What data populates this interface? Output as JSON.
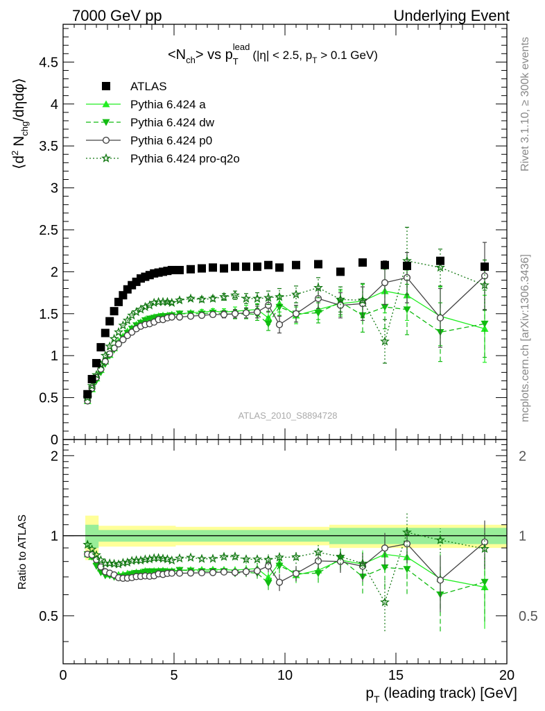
{
  "header": {
    "energy": "7000 GeV pp",
    "analysis_type": "Underlying Event"
  },
  "side": {
    "rivet": "Rivet 3.1.10, ≥ 300k events",
    "mcplots": "mcplots.cern.ch [arXiv:1306.3436]"
  },
  "watermark": "ATLAS_2010_S8894728",
  "title": {
    "main": "<N",
    "ch_sub": "ch",
    "vs": "> vs p",
    "lead_sup": "lead",
    "t_sub": "T",
    "cuts_1": "(|η| < 2.5, p",
    "cuts_t_sub": "T",
    "cuts_2": " > 0.1 GeV)"
  },
  "ylabel": {
    "part1": "⟨d",
    "sup2": "2",
    "part2": " N",
    "sub": "chg",
    "part3": "/dηdφ⟩"
  },
  "ratio_ylabel": "Ratio to ATLAS",
  "xlabel": {
    "p": "p",
    "sub": "T",
    "rest": " (leading track) [GeV]"
  },
  "chart_data": {
    "type": "scatter",
    "xlim": [
      0,
      20
    ],
    "ylim": [
      0,
      4.95
    ],
    "ratio_ylim": [
      0.33,
      2.3
    ],
    "x_ticks": [
      "0",
      "5",
      "10",
      "15",
      "20"
    ],
    "y_ticks": [
      "0.5",
      "1",
      "1.5",
      "2",
      "2.5",
      "3",
      "3.5",
      "4",
      "4.5"
    ],
    "y_ticks_clipped": "0",
    "ratio_ticks_left": [
      "0.5",
      "1",
      "2"
    ],
    "ratio_ticks_right": [
      "0.5",
      "1",
      "2"
    ],
    "x": [
      1.1,
      1.3,
      1.5,
      1.7,
      1.9,
      2.1,
      2.3,
      2.5,
      2.7,
      2.9,
      3.1,
      3.3,
      3.5,
      3.7,
      3.9,
      4.1,
      4.3,
      4.5,
      4.7,
      4.9,
      5.25,
      5.75,
      6.25,
      6.75,
      7.25,
      7.75,
      8.25,
      8.75,
      9.25,
      9.75,
      10.5,
      11.5,
      12.5,
      13.5,
      14.5,
      15.5,
      17.0,
      19.0
    ],
    "series": [
      {
        "name": "ATLAS",
        "color": "#000000",
        "marker": "square",
        "values": [
          0.54,
          0.72,
          0.91,
          1.1,
          1.27,
          1.41,
          1.53,
          1.64,
          1.72,
          1.79,
          1.84,
          1.88,
          1.92,
          1.94,
          1.96,
          1.98,
          1.99,
          2.0,
          2.01,
          2.02,
          2.02,
          2.03,
          2.04,
          2.05,
          2.04,
          2.06,
          2.06,
          2.06,
          2.08,
          2.05,
          2.08,
          2.09,
          2.0,
          2.11,
          2.08,
          2.07,
          2.13,
          2.06
        ],
        "errors": [
          0.01,
          0.01,
          0.01,
          0.01,
          0.01,
          0.01,
          0.01,
          0.01,
          0.01,
          0.01,
          0.01,
          0.01,
          0.01,
          0.01,
          0.01,
          0.01,
          0.01,
          0.01,
          0.01,
          0.01,
          0.01,
          0.01,
          0.01,
          0.01,
          0.01,
          0.01,
          0.01,
          0.01,
          0.01,
          0.02,
          0.02,
          0.02,
          0.03,
          0.03,
          0.04,
          0.05,
          0.06,
          0.1
        ]
      },
      {
        "name": "Pythia 6.424 a",
        "color": "#22ee22",
        "marker": "triangle-up",
        "line": "solid",
        "values": [
          0.46,
          0.6,
          0.73,
          0.83,
          0.93,
          1.01,
          1.09,
          1.17,
          1.23,
          1.29,
          1.33,
          1.37,
          1.4,
          1.43,
          1.44,
          1.46,
          1.47,
          1.48,
          1.48,
          1.49,
          1.5,
          1.51,
          1.52,
          1.53,
          1.52,
          1.53,
          1.54,
          1.55,
          1.45,
          1.62,
          1.48,
          1.55,
          1.62,
          1.65,
          1.77,
          1.72,
          1.47,
          1.32
        ],
        "errors": [
          0.01,
          0.01,
          0.01,
          0.01,
          0.01,
          0.01,
          0.01,
          0.01,
          0.01,
          0.01,
          0.01,
          0.01,
          0.01,
          0.01,
          0.01,
          0.01,
          0.01,
          0.01,
          0.02,
          0.02,
          0.02,
          0.02,
          0.03,
          0.03,
          0.04,
          0.05,
          0.06,
          0.07,
          0.08,
          0.1,
          0.1,
          0.12,
          0.15,
          0.2,
          0.26,
          0.3,
          0.35,
          0.4
        ]
      },
      {
        "name": "Pythia 6.424 dw",
        "color": "#11bb11",
        "marker": "triangle-down",
        "line": "dashed",
        "values": [
          0.46,
          0.6,
          0.7,
          0.8,
          0.9,
          1.0,
          1.07,
          1.14,
          1.21,
          1.27,
          1.32,
          1.36,
          1.39,
          1.42,
          1.44,
          1.45,
          1.46,
          1.47,
          1.47,
          1.48,
          1.5,
          1.5,
          1.5,
          1.51,
          1.5,
          1.49,
          1.5,
          1.49,
          1.38,
          1.58,
          1.5,
          1.51,
          1.64,
          1.48,
          1.58,
          1.55,
          1.28,
          1.38
        ],
        "errors": [
          0.01,
          0.01,
          0.01,
          0.01,
          0.01,
          0.01,
          0.01,
          0.01,
          0.01,
          0.01,
          0.01,
          0.01,
          0.01,
          0.01,
          0.01,
          0.01,
          0.01,
          0.01,
          0.02,
          0.02,
          0.02,
          0.02,
          0.03,
          0.03,
          0.04,
          0.05,
          0.06,
          0.07,
          0.08,
          0.1,
          0.1,
          0.12,
          0.15,
          0.2,
          0.26,
          0.3,
          0.35,
          0.4
        ]
      },
      {
        "name": "Pythia 6.424 p0",
        "color": "#444444",
        "marker": "circle-open",
        "line": "solid",
        "values": [
          0.46,
          0.61,
          0.74,
          0.84,
          0.93,
          1.02,
          1.09,
          1.14,
          1.19,
          1.24,
          1.28,
          1.32,
          1.35,
          1.37,
          1.38,
          1.4,
          1.43,
          1.43,
          1.45,
          1.46,
          1.46,
          1.47,
          1.48,
          1.49,
          1.49,
          1.5,
          1.51,
          1.52,
          1.6,
          1.37,
          1.5,
          1.68,
          1.6,
          1.62,
          1.87,
          1.93,
          1.45,
          1.95
        ],
        "errors": [
          0.01,
          0.01,
          0.01,
          0.01,
          0.01,
          0.01,
          0.01,
          0.01,
          0.01,
          0.01,
          0.01,
          0.01,
          0.01,
          0.01,
          0.01,
          0.01,
          0.01,
          0.01,
          0.02,
          0.02,
          0.02,
          0.02,
          0.03,
          0.03,
          0.04,
          0.05,
          0.06,
          0.07,
          0.08,
          0.1,
          0.1,
          0.12,
          0.15,
          0.2,
          0.26,
          0.3,
          0.35,
          0.4
        ]
      },
      {
        "name": "Pythia 6.424 pro-q2o",
        "color": "#117711",
        "marker": "star",
        "line": "dotted",
        "values": [
          0.5,
          0.64,
          0.77,
          0.89,
          1.0,
          1.11,
          1.2,
          1.28,
          1.36,
          1.42,
          1.48,
          1.52,
          1.55,
          1.58,
          1.6,
          1.63,
          1.64,
          1.64,
          1.64,
          1.63,
          1.66,
          1.68,
          1.67,
          1.68,
          1.7,
          1.72,
          1.68,
          1.68,
          1.69,
          1.7,
          1.73,
          1.81,
          1.67,
          1.66,
          1.17,
          2.13,
          2.05,
          1.84
        ],
        "errors": [
          0.01,
          0.01,
          0.01,
          0.01,
          0.01,
          0.01,
          0.01,
          0.01,
          0.01,
          0.01,
          0.01,
          0.01,
          0.01,
          0.01,
          0.01,
          0.01,
          0.01,
          0.01,
          0.02,
          0.02,
          0.02,
          0.02,
          0.03,
          0.03,
          0.04,
          0.05,
          0.06,
          0.07,
          0.08,
          0.1,
          0.1,
          0.12,
          0.15,
          0.2,
          0.26,
          0.4,
          0.22,
          0.3
        ]
      }
    ]
  }
}
